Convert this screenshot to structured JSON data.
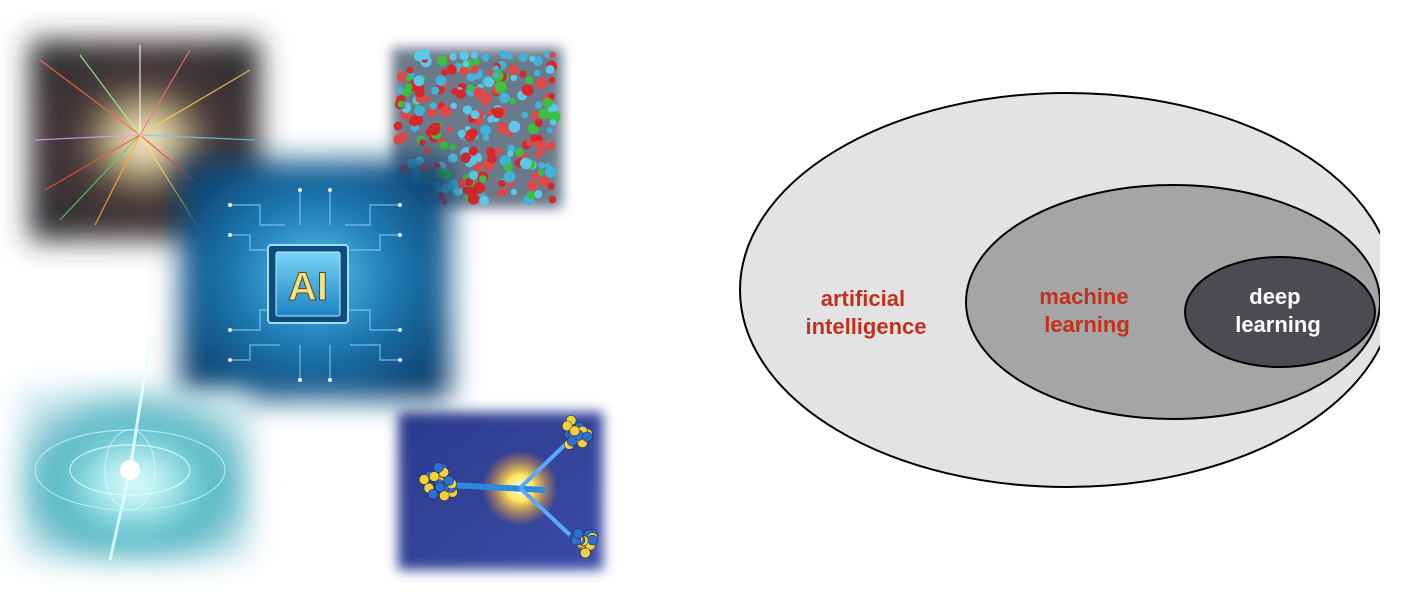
{
  "collage": {
    "tiles": [
      {
        "name": "particle-collision-tile",
        "icon": "particle-burst-icon"
      },
      {
        "name": "molecular-simulation-tile",
        "icon": "atom-cluster-icon"
      },
      {
        "name": "ai-chip-tile",
        "icon": "ai-chip-icon",
        "chip_text": "AI"
      },
      {
        "name": "neutron-star-tile",
        "icon": "pulsar-icon"
      },
      {
        "name": "nuclear-fission-tile",
        "icon": "nucleus-icon"
      }
    ]
  },
  "venn": {
    "outer": {
      "line1": "artificial",
      "line2": "intelligence"
    },
    "middle": {
      "line1": "machine",
      "line2": "learning"
    },
    "inner": {
      "line1": "deep",
      "line2": "learning"
    },
    "colors": {
      "outer_fill": "#e3e3e5",
      "middle_fill": "#a5a5a5",
      "inner_fill": "#4a4c52",
      "stroke": "#000000",
      "label_red": "#c0321c",
      "label_white": "#ffffff"
    }
  }
}
